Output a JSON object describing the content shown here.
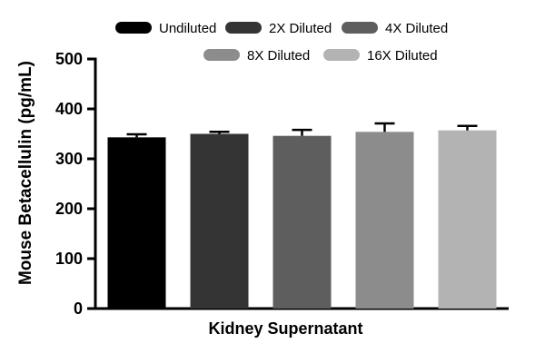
{
  "chart_data": {
    "type": "bar",
    "title": "",
    "xlabel": "Kidney Supernatant",
    "ylabel": "Mouse Betacellulin (pg/mL)",
    "ylim": [
      0,
      500
    ],
    "yticks": [
      0,
      100,
      200,
      300,
      400,
      500
    ],
    "categories": [
      "Undiluted",
      "2X Diluted",
      "4X Diluted",
      "8X Diluted",
      "16X Diluted"
    ],
    "values": [
      343,
      350,
      346,
      354,
      357
    ],
    "errors": [
      6,
      4,
      12,
      17,
      9
    ],
    "bar_colors": [
      "#000000",
      "#343434",
      "#5e5e5e",
      "#8c8c8c",
      "#b3b3b3"
    ],
    "legend": [
      {
        "label": "Undiluted",
        "color": "#000000"
      },
      {
        "label": "2X Diluted",
        "color": "#343434"
      },
      {
        "label": "4X Diluted",
        "color": "#5e5e5e"
      },
      {
        "label": "8X Diluted",
        "color": "#8c8c8c"
      },
      {
        "label": "16X Diluted",
        "color": "#b3b3b3"
      }
    ],
    "legend_position": "top",
    "grid": false,
    "axis_color": "#000000"
  }
}
